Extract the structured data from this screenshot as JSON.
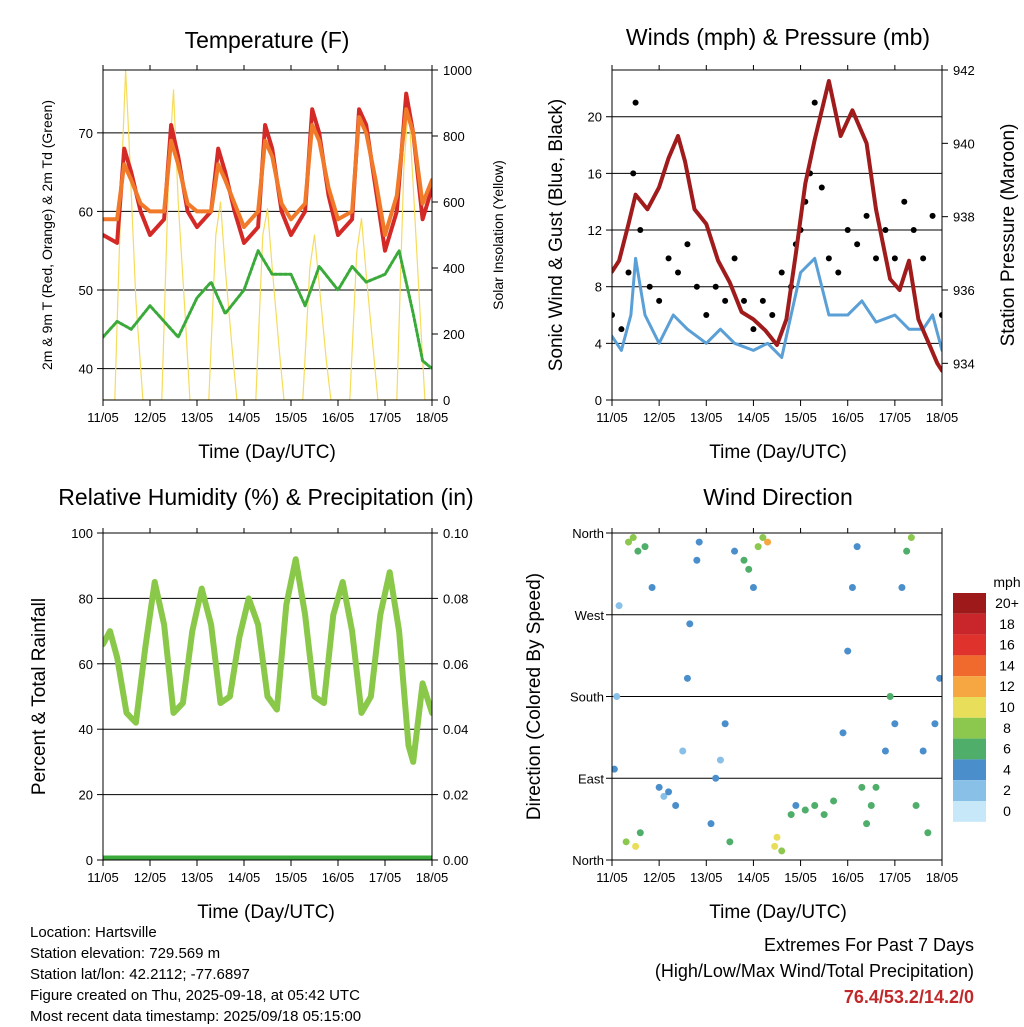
{
  "x_axis": {
    "label": "Time (Day/UTC)",
    "ticks": [
      "11/05",
      "12/05",
      "13/05",
      "14/05",
      "15/05",
      "16/05",
      "17/05",
      "18/05"
    ]
  },
  "colors": {
    "temp_2m": "#d42a27",
    "temp_9m": "#f07a2a",
    "dewpoint": "#3aaa3a",
    "solar": "#f5dc5a",
    "wind": "#5a9fd6",
    "gust": "#000000",
    "pressure": "#a01c1c",
    "humidity": "#8ac84a",
    "precip": "#3aaa3a",
    "extremes": "#c0282a"
  },
  "chart_data": [
    {
      "id": "temperature",
      "type": "line",
      "title": "Temperature (F)",
      "xlabel": "Time (Day/UTC)",
      "ylabel": "2m & 9m T (Red, Orange) & 2m Td (Green)",
      "ylabel_right": "Solar Insolation (Yellow)",
      "ylim": [
        36,
        78
      ],
      "yticks": [
        40,
        50,
        60,
        70
      ],
      "ylim_right": [
        0,
        1000
      ],
      "yticks_right": [
        0,
        200,
        400,
        600,
        800,
        1000
      ],
      "xlim": [
        0,
        7
      ],
      "grid": "horizontal",
      "series": [
        {
          "name": "2m T",
          "color": "#d42a27",
          "x": [
            0,
            0.3,
            0.45,
            0.6,
            0.8,
            1.0,
            1.3,
            1.45,
            1.6,
            1.8,
            2.0,
            2.3,
            2.45,
            2.6,
            2.8,
            3.0,
            3.3,
            3.45,
            3.6,
            3.8,
            4.0,
            4.3,
            4.45,
            4.6,
            4.8,
            5.0,
            5.3,
            5.45,
            5.6,
            5.8,
            6.0,
            6.25,
            6.45,
            6.6,
            6.8,
            7.0
          ],
          "values": [
            57,
            56,
            68,
            65,
            60,
            57,
            59,
            71,
            67,
            60,
            58,
            60,
            68,
            65,
            60,
            56,
            58,
            71,
            68,
            60,
            57,
            60,
            73,
            70,
            62,
            57,
            59,
            73,
            71,
            63,
            55,
            60,
            75,
            70,
            59,
            63
          ]
        },
        {
          "name": "9m T",
          "color": "#f07a2a",
          "x": [
            0,
            0.3,
            0.45,
            0.6,
            0.8,
            1.0,
            1.3,
            1.45,
            1.6,
            1.8,
            2.0,
            2.3,
            2.45,
            2.6,
            2.8,
            3.0,
            3.3,
            3.45,
            3.6,
            3.8,
            4.0,
            4.3,
            4.45,
            4.6,
            4.8,
            5.0,
            5.3,
            5.45,
            5.6,
            5.8,
            6.0,
            6.25,
            6.45,
            6.6,
            6.8,
            7.0
          ],
          "values": [
            59,
            59,
            66,
            64,
            61,
            60,
            60,
            69,
            66,
            61,
            60,
            60,
            66,
            64,
            61,
            58,
            60,
            69,
            67,
            61,
            59,
            61,
            71,
            69,
            63,
            59,
            60,
            72,
            70,
            64,
            57,
            62,
            73,
            70,
            61,
            64
          ]
        },
        {
          "name": "2m Td",
          "color": "#3aaa3a",
          "x": [
            0,
            0.3,
            0.6,
            1.0,
            1.3,
            1.6,
            2.0,
            2.3,
            2.6,
            3.0,
            3.3,
            3.6,
            4.0,
            4.3,
            4.6,
            5.0,
            5.3,
            5.6,
            6.0,
            6.3,
            6.6,
            6.8,
            7.0
          ],
          "values": [
            44,
            46,
            45,
            48,
            46,
            44,
            49,
            51,
            47,
            50,
            55,
            52,
            52,
            48,
            53,
            50,
            53,
            51,
            52,
            55,
            47,
            41,
            40
          ]
        },
        {
          "name": "Solar Insolation",
          "color": "#f5dc5a",
          "axis": "right",
          "x": [
            0,
            0.25,
            0.4,
            0.48,
            0.55,
            0.7,
            0.85,
            1.25,
            1.4,
            1.5,
            1.6,
            1.75,
            1.85,
            2.25,
            2.4,
            2.5,
            2.6,
            2.75,
            2.85,
            3.25,
            3.4,
            3.5,
            3.6,
            3.75,
            3.85,
            4.25,
            4.4,
            4.5,
            4.6,
            4.75,
            4.85,
            5.25,
            5.4,
            5.5,
            5.6,
            5.75,
            5.85,
            6.25,
            6.4,
            6.5,
            6.6,
            6.75,
            6.85,
            7.0
          ],
          "values": [
            0,
            0,
            700,
            1000,
            800,
            300,
            0,
            0,
            700,
            940,
            600,
            250,
            0,
            0,
            500,
            600,
            400,
            150,
            0,
            0,
            500,
            580,
            400,
            150,
            0,
            0,
            400,
            500,
            350,
            120,
            0,
            0,
            450,
            550,
            380,
            150,
            0,
            0,
            700,
            900,
            650,
            250,
            0,
            0
          ]
        }
      ]
    },
    {
      "id": "winds",
      "type": "line",
      "title": "Winds (mph) & Pressure (mb)",
      "xlabel": "Time (Day/UTC)",
      "ylabel": "Sonic Wind & Gust (Blue, Black)",
      "ylabel_right": "Station Pressure (Maroon)",
      "ylim": [
        0,
        23.3
      ],
      "yticks": [
        0,
        4,
        8,
        12,
        16,
        20
      ],
      "ylim_right": [
        933,
        942
      ],
      "yticks_right": [
        934,
        936,
        938,
        940,
        942
      ],
      "xlim": [
        0,
        7
      ],
      "grid": "horizontal",
      "series": [
        {
          "name": "Sonic Wind",
          "color": "#5a9fd6",
          "x": [
            0,
            0.2,
            0.4,
            0.5,
            0.7,
            1.0,
            1.3,
            1.6,
            2.0,
            2.3,
            2.6,
            3.0,
            3.3,
            3.6,
            3.8,
            4.0,
            4.3,
            4.6,
            5.0,
            5.3,
            5.6,
            6.0,
            6.3,
            6.6,
            6.8,
            7.0
          ],
          "values": [
            4.5,
            3.5,
            6,
            10,
            6,
            4,
            6,
            5,
            4,
            5,
            4,
            3.5,
            4,
            3,
            6,
            9,
            10,
            6,
            6,
            7,
            5.5,
            6,
            5,
            5,
            6,
            3.5
          ]
        },
        {
          "name": "Gust",
          "color": "#000000",
          "type": "scatter",
          "x": [
            0,
            0.2,
            0.35,
            0.45,
            0.5,
            0.6,
            0.8,
            1.0,
            1.2,
            1.4,
            1.6,
            1.8,
            2.0,
            2.2,
            2.4,
            2.6,
            2.8,
            3.0,
            3.2,
            3.4,
            3.6,
            3.8,
            3.9,
            4.0,
            4.1,
            4.2,
            4.3,
            4.45,
            4.6,
            4.8,
            5.0,
            5.2,
            5.4,
            5.6,
            5.8,
            6.0,
            6.2,
            6.4,
            6.6,
            6.8,
            7.0
          ],
          "values": [
            6,
            5,
            9,
            16,
            21,
            12,
            8,
            7,
            10,
            9,
            11,
            8,
            6,
            8,
            7,
            10,
            7,
            5,
            7,
            6,
            9,
            8,
            11,
            12,
            14,
            16,
            21,
            15,
            10,
            9,
            12,
            11,
            13,
            10,
            12,
            10,
            14,
            12,
            10,
            13,
            6
          ]
        },
        {
          "name": "Station Pressure",
          "color": "#a01c1c",
          "axis": "right",
          "x": [
            0,
            0.15,
            0.35,
            0.5,
            0.75,
            1.0,
            1.2,
            1.4,
            1.55,
            1.75,
            2.0,
            2.25,
            2.5,
            2.75,
            3.0,
            3.25,
            3.5,
            3.7,
            3.9,
            4.1,
            4.3,
            4.6,
            4.85,
            5.1,
            5.4,
            5.6,
            5.9,
            6.1,
            6.3,
            6.5,
            6.7,
            6.9,
            7.0
          ],
          "values": [
            936.5,
            936.8,
            937.8,
            938.6,
            938.2,
            938.8,
            939.6,
            940.2,
            939.5,
            938.2,
            937.8,
            936.8,
            936.2,
            935.4,
            935.2,
            934.9,
            934.5,
            935.2,
            937.0,
            938.9,
            940.1,
            941.7,
            940.2,
            940.9,
            940.0,
            938.2,
            936.3,
            936.0,
            936.8,
            935.2,
            934.6,
            934.0,
            933.8
          ]
        }
      ]
    },
    {
      "id": "humidity",
      "type": "line",
      "title": "Relative Humidity (%) & Precipitation (in)",
      "xlabel": "Time (Day/UTC)",
      "ylabel": "Percent & Total Rainfall",
      "ylim": [
        0,
        100
      ],
      "yticks": [
        0,
        20,
        40,
        60,
        80,
        100
      ],
      "ylim_right": [
        0,
        0.1
      ],
      "yticks_right": [
        "0.00",
        "0.02",
        "0.04",
        "0.06",
        "0.08",
        "0.10"
      ],
      "xlim": [
        0,
        7
      ],
      "grid": "horizontal",
      "series": [
        {
          "name": "Relative Humidity",
          "color": "#8ac84a",
          "x": [
            0,
            0.15,
            0.3,
            0.5,
            0.7,
            0.9,
            1.1,
            1.3,
            1.5,
            1.7,
            1.9,
            2.1,
            2.3,
            2.5,
            2.7,
            2.9,
            3.1,
            3.3,
            3.5,
            3.7,
            3.9,
            4.1,
            4.3,
            4.5,
            4.7,
            4.9,
            5.1,
            5.3,
            5.5,
            5.7,
            5.9,
            6.1,
            6.3,
            6.5,
            6.6,
            6.8,
            7.0
          ],
          "values": [
            66,
            70,
            62,
            45,
            42,
            65,
            85,
            72,
            45,
            48,
            70,
            83,
            72,
            48,
            50,
            68,
            80,
            72,
            50,
            46,
            78,
            92,
            75,
            50,
            48,
            75,
            85,
            70,
            45,
            50,
            75,
            88,
            70,
            35,
            30,
            54,
            45
          ]
        },
        {
          "name": "Total Precipitation",
          "color": "#3aaa3a",
          "axis": "right",
          "x": [
            0,
            7
          ],
          "values": [
            0,
            0
          ]
        }
      ]
    },
    {
      "id": "direction",
      "type": "scatter",
      "title": "Wind Direction",
      "xlabel": "Time (Day/UTC)",
      "ylabel": "Direction (Colored By Speed)",
      "ytick_labels": [
        "North",
        "East",
        "South",
        "West",
        "North"
      ],
      "ylim": [
        0,
        360
      ],
      "xlim": [
        0,
        7
      ],
      "grid": "horizontal",
      "colorbar": {
        "label": "mph",
        "levels": [
          "20+",
          "18",
          "16",
          "14",
          "12",
          "10",
          "8",
          "6",
          "4",
          "2",
          "0"
        ],
        "colors": [
          "#9e1a1a",
          "#c8262a",
          "#e0322d",
          "#ef6a2c",
          "#f6a742",
          "#e8de5a",
          "#8cc84e",
          "#4fae6a",
          "#4a8fcc",
          "#88c0e8",
          "#c6e8f8"
        ]
      },
      "points": [
        {
          "x": 0.05,
          "y": 100,
          "s": 4
        },
        {
          "x": 0.1,
          "y": 180,
          "s": 3
        },
        {
          "x": 0.15,
          "y": 280,
          "s": 3
        },
        {
          "x": 0.3,
          "y": 20,
          "s": 8
        },
        {
          "x": 0.35,
          "y": 350,
          "s": 9
        },
        {
          "x": 0.45,
          "y": 355,
          "s": 8
        },
        {
          "x": 0.5,
          "y": 15,
          "s": 10
        },
        {
          "x": 0.55,
          "y": 340,
          "s": 7
        },
        {
          "x": 0.6,
          "y": 30,
          "s": 6
        },
        {
          "x": 0.7,
          "y": 345,
          "s": 6
        },
        {
          "x": 0.85,
          "y": 300,
          "s": 4
        },
        {
          "x": 1.0,
          "y": 80,
          "s": 4
        },
        {
          "x": 1.1,
          "y": 70,
          "s": 3
        },
        {
          "x": 1.2,
          "y": 75,
          "s": 4
        },
        {
          "x": 1.35,
          "y": 60,
          "s": 4
        },
        {
          "x": 1.5,
          "y": 120,
          "s": 3
        },
        {
          "x": 1.6,
          "y": 200,
          "s": 5
        },
        {
          "x": 1.65,
          "y": 260,
          "s": 4
        },
        {
          "x": 1.8,
          "y": 330,
          "s": 5
        },
        {
          "x": 1.85,
          "y": 350,
          "s": 4
        },
        {
          "x": 2.1,
          "y": 40,
          "s": 4
        },
        {
          "x": 2.2,
          "y": 90,
          "s": 4
        },
        {
          "x": 2.3,
          "y": 110,
          "s": 3
        },
        {
          "x": 2.4,
          "y": 150,
          "s": 4
        },
        {
          "x": 2.5,
          "y": 20,
          "s": 6
        },
        {
          "x": 2.6,
          "y": 340,
          "s": 5
        },
        {
          "x": 2.8,
          "y": 330,
          "s": 6
        },
        {
          "x": 2.9,
          "y": 320,
          "s": 7
        },
        {
          "x": 3.0,
          "y": 300,
          "s": 5
        },
        {
          "x": 3.1,
          "y": 345,
          "s": 8
        },
        {
          "x": 3.2,
          "y": 355,
          "s": 9
        },
        {
          "x": 3.3,
          "y": 350,
          "s": 12
        },
        {
          "x": 3.45,
          "y": 15,
          "s": 11
        },
        {
          "x": 3.5,
          "y": 25,
          "s": 10
        },
        {
          "x": 3.6,
          "y": 10,
          "s": 8
        },
        {
          "x": 3.8,
          "y": 50,
          "s": 6
        },
        {
          "x": 3.9,
          "y": 60,
          "s": 5
        },
        {
          "x": 4.1,
          "y": 55,
          "s": 6
        },
        {
          "x": 4.3,
          "y": 60,
          "s": 7
        },
        {
          "x": 4.5,
          "y": 50,
          "s": 6
        },
        {
          "x": 4.7,
          "y": 65,
          "s": 6
        },
        {
          "x": 4.9,
          "y": 140,
          "s": 4
        },
        {
          "x": 5.0,
          "y": 230,
          "s": 4
        },
        {
          "x": 5.1,
          "y": 300,
          "s": 4
        },
        {
          "x": 5.2,
          "y": 345,
          "s": 5
        },
        {
          "x": 5.3,
          "y": 80,
          "s": 6
        },
        {
          "x": 5.4,
          "y": 40,
          "s": 7
        },
        {
          "x": 5.5,
          "y": 60,
          "s": 7
        },
        {
          "x": 5.6,
          "y": 80,
          "s": 6
        },
        {
          "x": 5.8,
          "y": 120,
          "s": 5
        },
        {
          "x": 5.9,
          "y": 180,
          "s": 6
        },
        {
          "x": 6.0,
          "y": 150,
          "s": 5
        },
        {
          "x": 6.15,
          "y": 300,
          "s": 4
        },
        {
          "x": 6.25,
          "y": 340,
          "s": 6
        },
        {
          "x": 6.35,
          "y": 355,
          "s": 9
        },
        {
          "x": 6.45,
          "y": 60,
          "s": 6
        },
        {
          "x": 6.6,
          "y": 120,
          "s": 5
        },
        {
          "x": 6.7,
          "y": 30,
          "s": 6
        },
        {
          "x": 6.85,
          "y": 150,
          "s": 4
        },
        {
          "x": 6.95,
          "y": 200,
          "s": 4
        }
      ]
    }
  ],
  "info": {
    "location": "Location: Hartsville",
    "elevation": "Station elevation: 729.569 m",
    "latlon": "Station lat/lon: 42.2112; -77.6897",
    "created": "Figure created on Thu, 2025-09-18, at 05:42 UTC",
    "timestamp": "Most recent data timestamp: 2025/09/18 05:15:00"
  },
  "extremes": {
    "title": "Extremes For Past 7 Days",
    "subtitle": "(High/Low/Max Wind/Total Precipitation)",
    "values": "76.4/53.2/14.2/0"
  }
}
